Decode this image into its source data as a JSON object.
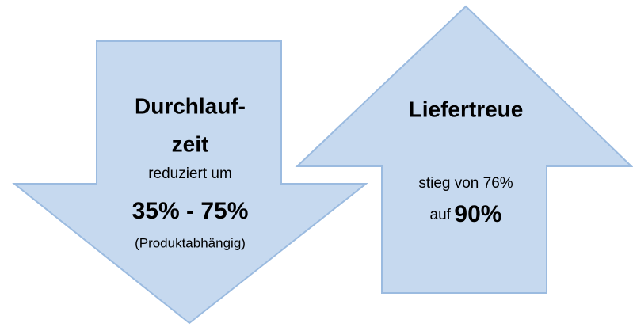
{
  "left_arrow": {
    "title_line1": "Durchlauf-",
    "title_line2": "zeit",
    "text": "reduziert um",
    "highlight": "35% - 75%",
    "note": "(Produktabhängig)"
  },
  "right_arrow": {
    "title": "Liefertreue",
    "text": "stieg von 76%",
    "prefix": "auf",
    "highlight": "90%"
  }
}
